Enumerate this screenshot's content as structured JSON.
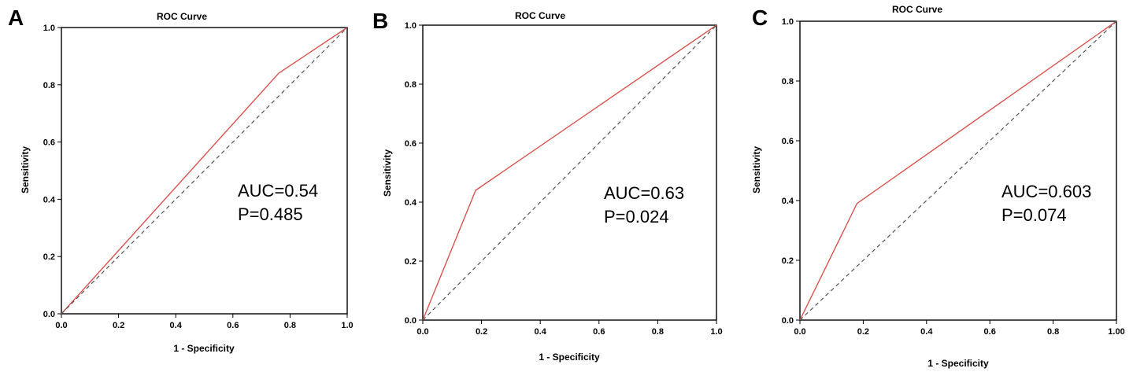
{
  "chart_data": [
    {
      "type": "line",
      "panel_label": "A",
      "title": "ROC Curve",
      "xlabel": "1 - Specificity",
      "ylabel": "Sensitivity",
      "xlim": [
        0,
        1
      ],
      "ylim": [
        0,
        1
      ],
      "xticks": [
        "0.0",
        "0.2",
        "0.4",
        "0.6",
        "0.8",
        "1.0"
      ],
      "yticks": [
        "0.0",
        "0.2",
        "0.4",
        "0.6",
        "0.8",
        "1.0"
      ],
      "series": [
        {
          "color": "#d9534f",
          "style": "solid",
          "x": [
            0,
            0.76,
            1
          ],
          "y": [
            0,
            0.84,
            1
          ]
        },
        {
          "color": "#555555",
          "style": "dashed",
          "x": [
            0,
            1
          ],
          "y": [
            0,
            1
          ]
        }
      ],
      "annotations": [
        "AUC=0.54",
        "P=0.485"
      ]
    },
    {
      "type": "line",
      "panel_label": "B",
      "title": "ROC Curve",
      "xlabel": "1 - Specificity",
      "ylabel": "Sensitivity",
      "xlim": [
        0,
        1
      ],
      "ylim": [
        0,
        1
      ],
      "xticks": [
        "0.0",
        "0.2",
        "0.4",
        "0.6",
        "0.8",
        "1.0"
      ],
      "yticks": [
        "0.0",
        "0.2",
        "0.4",
        "0.6",
        "0.8",
        "1.0"
      ],
      "series": [
        {
          "color": "#d9534f",
          "style": "solid",
          "x": [
            0,
            0.18,
            1
          ],
          "y": [
            0,
            0.44,
            1
          ]
        },
        {
          "color": "#555555",
          "style": "dashed",
          "x": [
            0,
            1
          ],
          "y": [
            0,
            1
          ]
        }
      ],
      "annotations": [
        "AUC=0.63",
        "P=0.024"
      ]
    },
    {
      "type": "line",
      "panel_label": "C",
      "title": "ROC Curve",
      "xlabel": "1 - Specificity",
      "ylabel": "Sensitivity",
      "xlim": [
        0,
        1
      ],
      "ylim": [
        0,
        1
      ],
      "xticks": [
        "0.0",
        "0.2",
        "0.4",
        "0.6",
        "0.8",
        "1.00"
      ],
      "yticks": [
        "0.0",
        "0.2",
        "0.4",
        "0.6",
        "0.8",
        "1.0"
      ],
      "series": [
        {
          "color": "#d9534f",
          "style": "solid",
          "x": [
            0,
            0.18,
            1
          ],
          "y": [
            0,
            0.39,
            1
          ]
        },
        {
          "color": "#555555",
          "style": "dashed",
          "x": [
            0,
            1
          ],
          "y": [
            0,
            1
          ]
        }
      ],
      "annotations": [
        "AUC=0.603",
        "P=0.074"
      ]
    }
  ]
}
